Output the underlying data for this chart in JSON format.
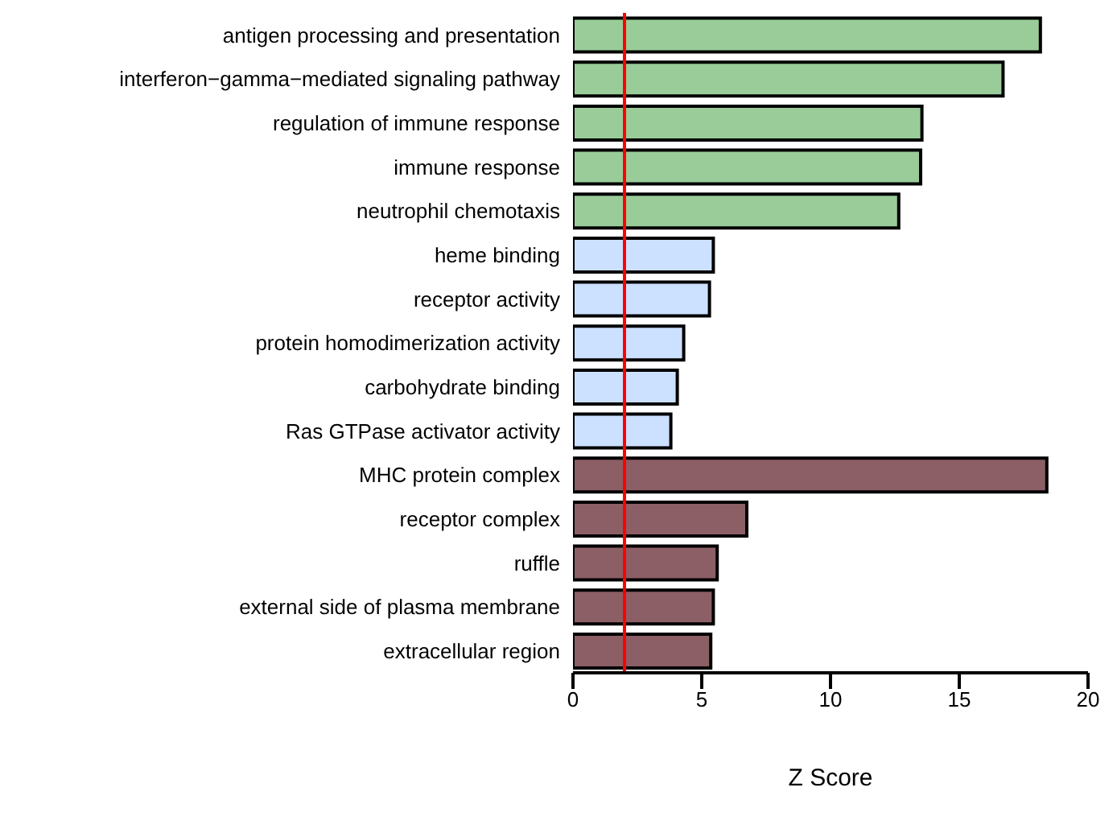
{
  "chart_data": {
    "type": "bar",
    "orientation": "horizontal",
    "xlabel": "Z Score",
    "categories": [
      "antigen processing and presentation",
      "interferon−gamma−mediated signaling pathway",
      "regulation of immune response",
      "immune response",
      "neutrophil chemotaxis",
      "heme binding",
      "receptor activity",
      "protein homodimerization activity",
      "carbohydrate binding",
      "Ras GTPase activator activity",
      "MHC protein complex",
      "receptor complex",
      "ruffle",
      "external side of plasma membrane",
      "extracellular region"
    ],
    "values": [
      18.15,
      16.7,
      13.55,
      13.5,
      12.65,
      5.45,
      5.3,
      4.3,
      4.05,
      3.8,
      18.4,
      6.75,
      5.6,
      5.45,
      5.35
    ],
    "colors": [
      "#99cc99",
      "#99cc99",
      "#99cc99",
      "#99cc99",
      "#99cc99",
      "#cce0ff",
      "#cce0ff",
      "#cce0ff",
      "#cce0ff",
      "#cce0ff",
      "#8b5f65",
      "#8b5f65",
      "#8b5f65",
      "#8b5f65",
      "#8b5f65"
    ],
    "xlim": [
      0,
      20
    ],
    "xticks": [
      0,
      5,
      10,
      15,
      20
    ],
    "ref_lines": [
      {
        "axis": "x",
        "value": 2,
        "color": "#ff0000"
      }
    ],
    "grid": false,
    "legend": false
  }
}
